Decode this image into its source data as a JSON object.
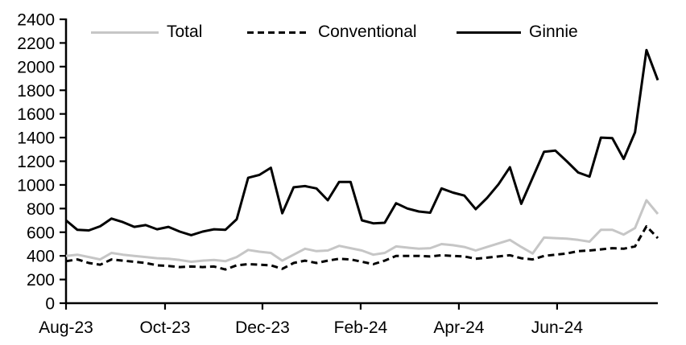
{
  "chart_data": {
    "type": "line",
    "title": "",
    "xlabel": "",
    "ylabel": "",
    "grid": false,
    "legend_position": "top",
    "x_unit": "weekly observations, Aug-2023 through Aug-2024",
    "ylim": [
      0,
      2400
    ],
    "y_tick_step": 200,
    "y_tick_labels": [
      "0",
      "200",
      "400",
      "600",
      "800",
      "1000",
      "1200",
      "1400",
      "1600",
      "1800",
      "2000",
      "2200",
      "2400"
    ],
    "x_ticks": [
      {
        "pos": 0,
        "label": "Aug-23"
      },
      {
        "pos": 8.7,
        "label": "Oct-23"
      },
      {
        "pos": 17.26,
        "label": "Dec-23"
      },
      {
        "pos": 25.89,
        "label": "Feb-24"
      },
      {
        "pos": 34.52,
        "label": "Apr-24"
      },
      {
        "pos": 43.15,
        "label": "Jun-24"
      }
    ],
    "series": [
      {
        "name": "Total",
        "color": "#c6c6c6",
        "style": "solid",
        "values": [
          400,
          410,
          390,
          370,
          425,
          410,
          400,
          390,
          380,
          375,
          365,
          350,
          360,
          365,
          355,
          390,
          450,
          435,
          425,
          360,
          410,
          460,
          440,
          445,
          485,
          465,
          445,
          410,
          425,
          480,
          470,
          460,
          465,
          500,
          490,
          475,
          445,
          475,
          505,
          535,
          475,
          420,
          555,
          550,
          545,
          535,
          520,
          620,
          620,
          580,
          635,
          870,
          755
        ]
      },
      {
        "name": "Conventional",
        "color": "#000000",
        "style": "dashed",
        "values": [
          355,
          370,
          340,
          325,
          370,
          360,
          350,
          340,
          320,
          315,
          305,
          310,
          305,
          310,
          285,
          320,
          330,
          325,
          320,
          290,
          340,
          360,
          340,
          360,
          375,
          370,
          350,
          330,
          360,
          400,
          400,
          400,
          395,
          405,
          400,
          395,
          375,
          385,
          395,
          405,
          380,
          370,
          400,
          410,
          420,
          440,
          445,
          455,
          465,
          460,
          480,
          650,
          550
        ]
      },
      {
        "name": "Ginnie",
        "color": "#000000",
        "style": "solid",
        "values": [
          700,
          620,
          615,
          650,
          715,
          685,
          645,
          660,
          625,
          645,
          605,
          575,
          605,
          625,
          620,
          710,
          1060,
          1085,
          1145,
          760,
          980,
          990,
          970,
          870,
          1025,
          1025,
          700,
          675,
          680,
          845,
          800,
          775,
          765,
          970,
          935,
          910,
          795,
          890,
          1005,
          1150,
          840,
          1060,
          1280,
          1290,
          1200,
          1105,
          1070,
          1400,
          1395,
          1220,
          1445,
          2140,
          1885
        ]
      }
    ]
  },
  "colors": {
    "background": "#ffffff",
    "axis": "#000000",
    "total_line": "#c6c6c6",
    "conventional_line": "#000000",
    "ginnie_line": "#000000"
  }
}
